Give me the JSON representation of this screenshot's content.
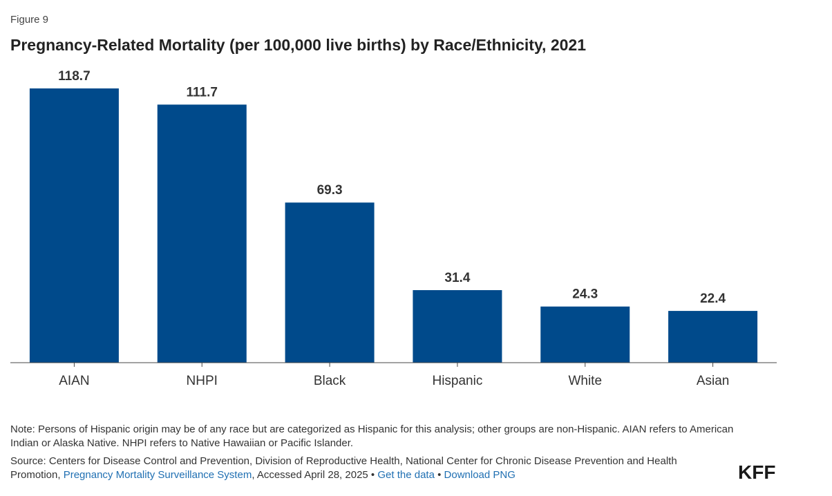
{
  "figure_label": "Figure 9",
  "chart_data": {
    "type": "bar",
    "title": "Pregnancy-Related Mortality (per 100,000 live births) by Race/Ethnicity, 2021",
    "categories": [
      "AIAN",
      "NHPI",
      "Black",
      "Hispanic",
      "White",
      "Asian"
    ],
    "values": [
      118.7,
      111.7,
      69.3,
      31.4,
      24.3,
      22.4
    ],
    "data_labels": [
      "118.7",
      "111.7",
      "69.3",
      "31.4",
      "24.3",
      "22.4"
    ],
    "xlabel": "",
    "ylabel": "",
    "ylim": [
      0,
      118.7
    ],
    "grid": false,
    "legend": "none",
    "bar_color": "#004a8b"
  },
  "note": "Note: Persons of Hispanic origin may be of any race but are categorized as Hispanic for this analysis; other groups are non-Hispanic. AIAN refers to American Indian or Alaska Native. NHPI refers to Native Hawaiian or Pacific Islander.",
  "source": {
    "prefix": "Source: Centers for Disease Control and Prevention, Division of Reproductive Health, National Center for Chronic Disease Prevention and Health Promotion, ",
    "link_label": "Pregnancy Mortality Surveillance System",
    "accessed": ", Accessed April 28, 2025",
    "separator": " • ",
    "get_data_label": "Get the data",
    "download_label": "Download PNG"
  },
  "logo": "KFF",
  "colors": {
    "link": "#1f6fb2",
    "bar": "#004a8b"
  }
}
